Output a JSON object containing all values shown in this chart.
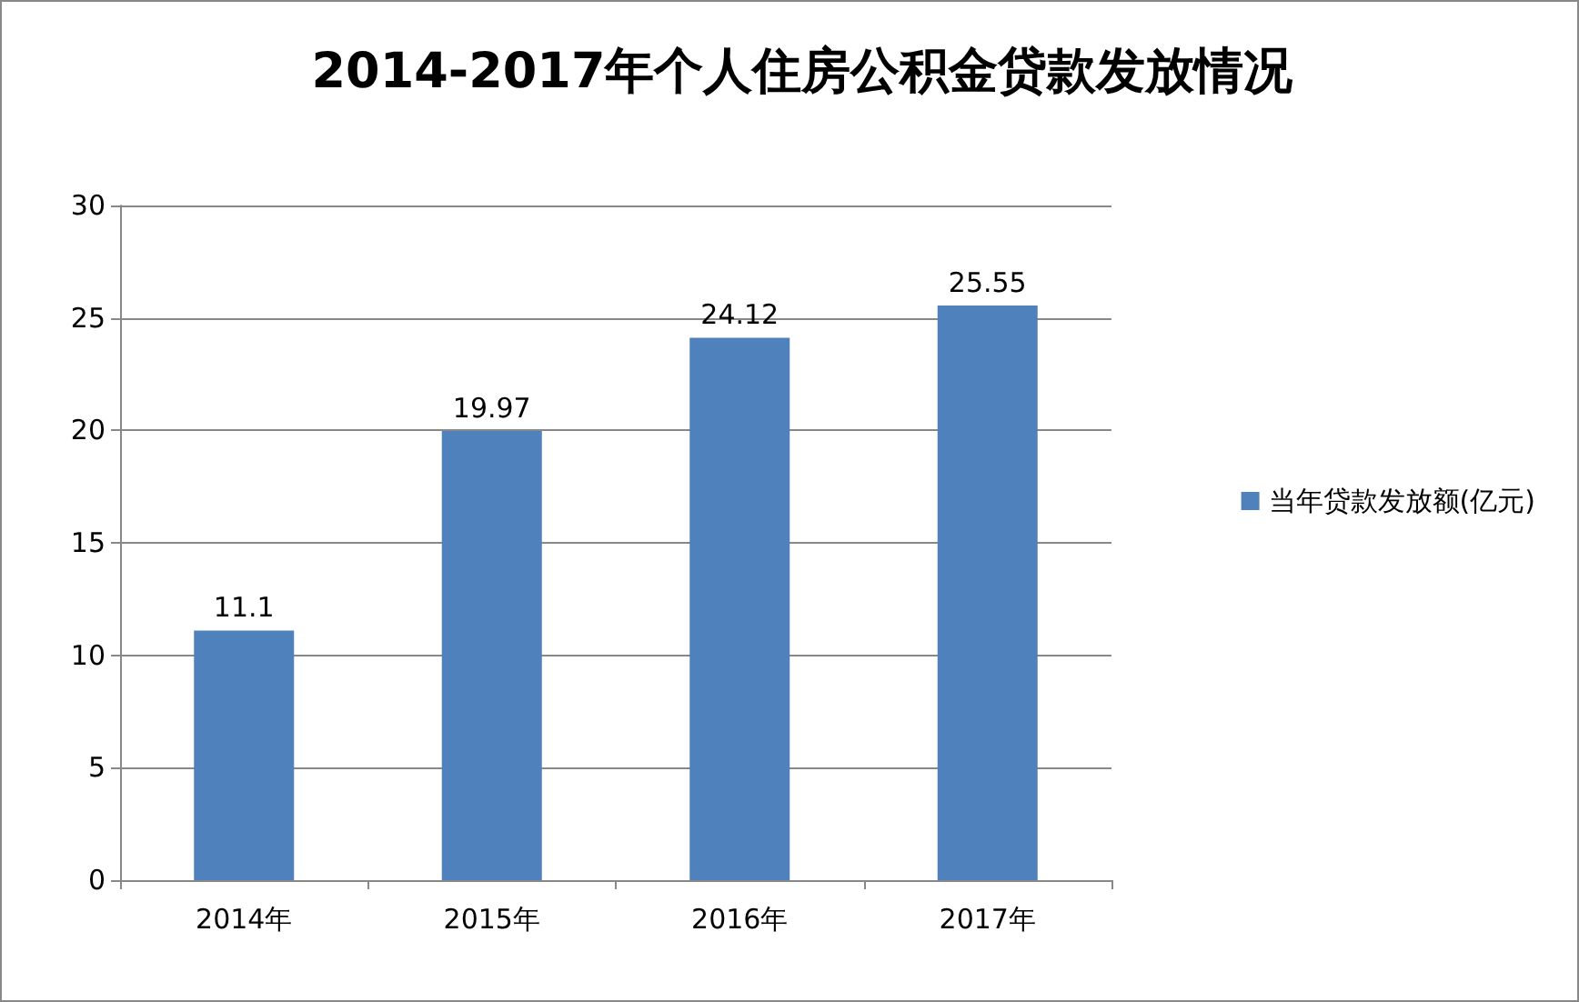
{
  "chart_data": {
    "type": "bar",
    "title": "2014-2017年个人住房公积金贷款发放情况",
    "categories": [
      "2014年",
      "2015年",
      "2016年",
      "2017年"
    ],
    "series": [
      {
        "name": "当年贷款发放额(亿元)",
        "color": "#4f81bd",
        "values": [
          11.1,
          19.97,
          24.12,
          25.55
        ]
      }
    ],
    "ylim": [
      0,
      30
    ],
    "yticks": [
      0,
      5,
      10,
      15,
      20,
      25,
      30
    ],
    "grid": "y",
    "legend": "right",
    "data_labels": true
  }
}
